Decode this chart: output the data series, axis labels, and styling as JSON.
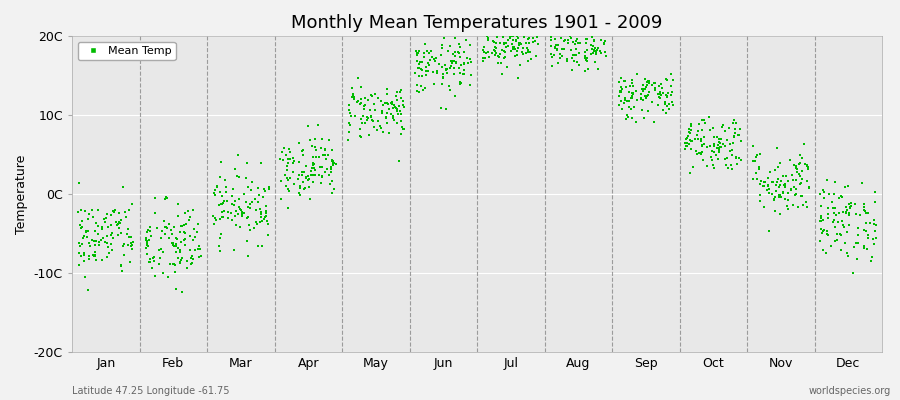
{
  "title": "Monthly Mean Temperatures 1901 - 2009",
  "ylabel": "Temperature",
  "subtitle_left": "Latitude 47.25 Longitude -61.75",
  "subtitle_right": "worldspecies.org",
  "dot_color": "#00bb00",
  "background_color": "#f2f2f2",
  "plot_bg_color": "#e8e8e8",
  "ylim": [
    -20,
    20
  ],
  "yticks": [
    -20,
    -10,
    0,
    10,
    20
  ],
  "ytick_labels": [
    "-20C",
    "-10C",
    "0C",
    "10C",
    "20C"
  ],
  "months": [
    "Jan",
    "Feb",
    "Mar",
    "Apr",
    "May",
    "Jun",
    "Jul",
    "Aug",
    "Sep",
    "Oct",
    "Nov",
    "Dec"
  ],
  "mean_temps": [
    -5.5,
    -6.5,
    -1.5,
    3.5,
    10.5,
    16.0,
    19.0,
    18.5,
    12.5,
    6.5,
    1.5,
    -3.5
  ],
  "std_temps": [
    2.5,
    2.8,
    2.3,
    2.0,
    1.8,
    1.8,
    1.5,
    1.5,
    1.5,
    1.8,
    2.2,
    2.5
  ],
  "n_years": 109,
  "seed": 42,
  "dot_size": 3,
  "title_fontsize": 13,
  "axis_fontsize": 9,
  "ylabel_fontsize": 9,
  "legend_fontsize": 8
}
